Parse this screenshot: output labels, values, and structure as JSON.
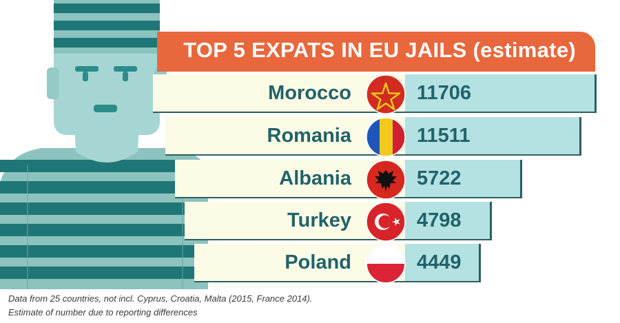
{
  "title": "TOP 5 EXPATS IN EU JAILS (estimate)",
  "chart_data": {
    "type": "table",
    "title": "TOP 5 EXPATS IN EU JAILS (estimate)",
    "categories": [
      "Morocco",
      "Romania",
      "Albania",
      "Turkey",
      "Poland"
    ],
    "values": [
      11706,
      11511,
      5722,
      4798,
      4449
    ],
    "rows": [
      {
        "country": "Morocco",
        "value": "11706",
        "flag": "morocco-flag-icon"
      },
      {
        "country": "Romania",
        "value": "11511",
        "flag": "romania-flag-icon"
      },
      {
        "country": "Albania",
        "value": "5722",
        "flag": "albania-flag-icon"
      },
      {
        "country": "Turkey",
        "value": "4798",
        "flag": "turkey-flag-icon"
      },
      {
        "country": "Poland",
        "value": "4449",
        "flag": "poland-flag-icon"
      }
    ]
  },
  "footnotes": [
    "Data from 25 countries, not incl. Cyprus, Croatia, Malta (2015, France 2014).",
    "Estimate of number due to reporting differences"
  ],
  "colors": {
    "banner": "#e8673c",
    "row_light": "#fcfbe6",
    "row_value": "#b4e1e1",
    "text": "#21626a",
    "outline": "#2f5e5e"
  }
}
